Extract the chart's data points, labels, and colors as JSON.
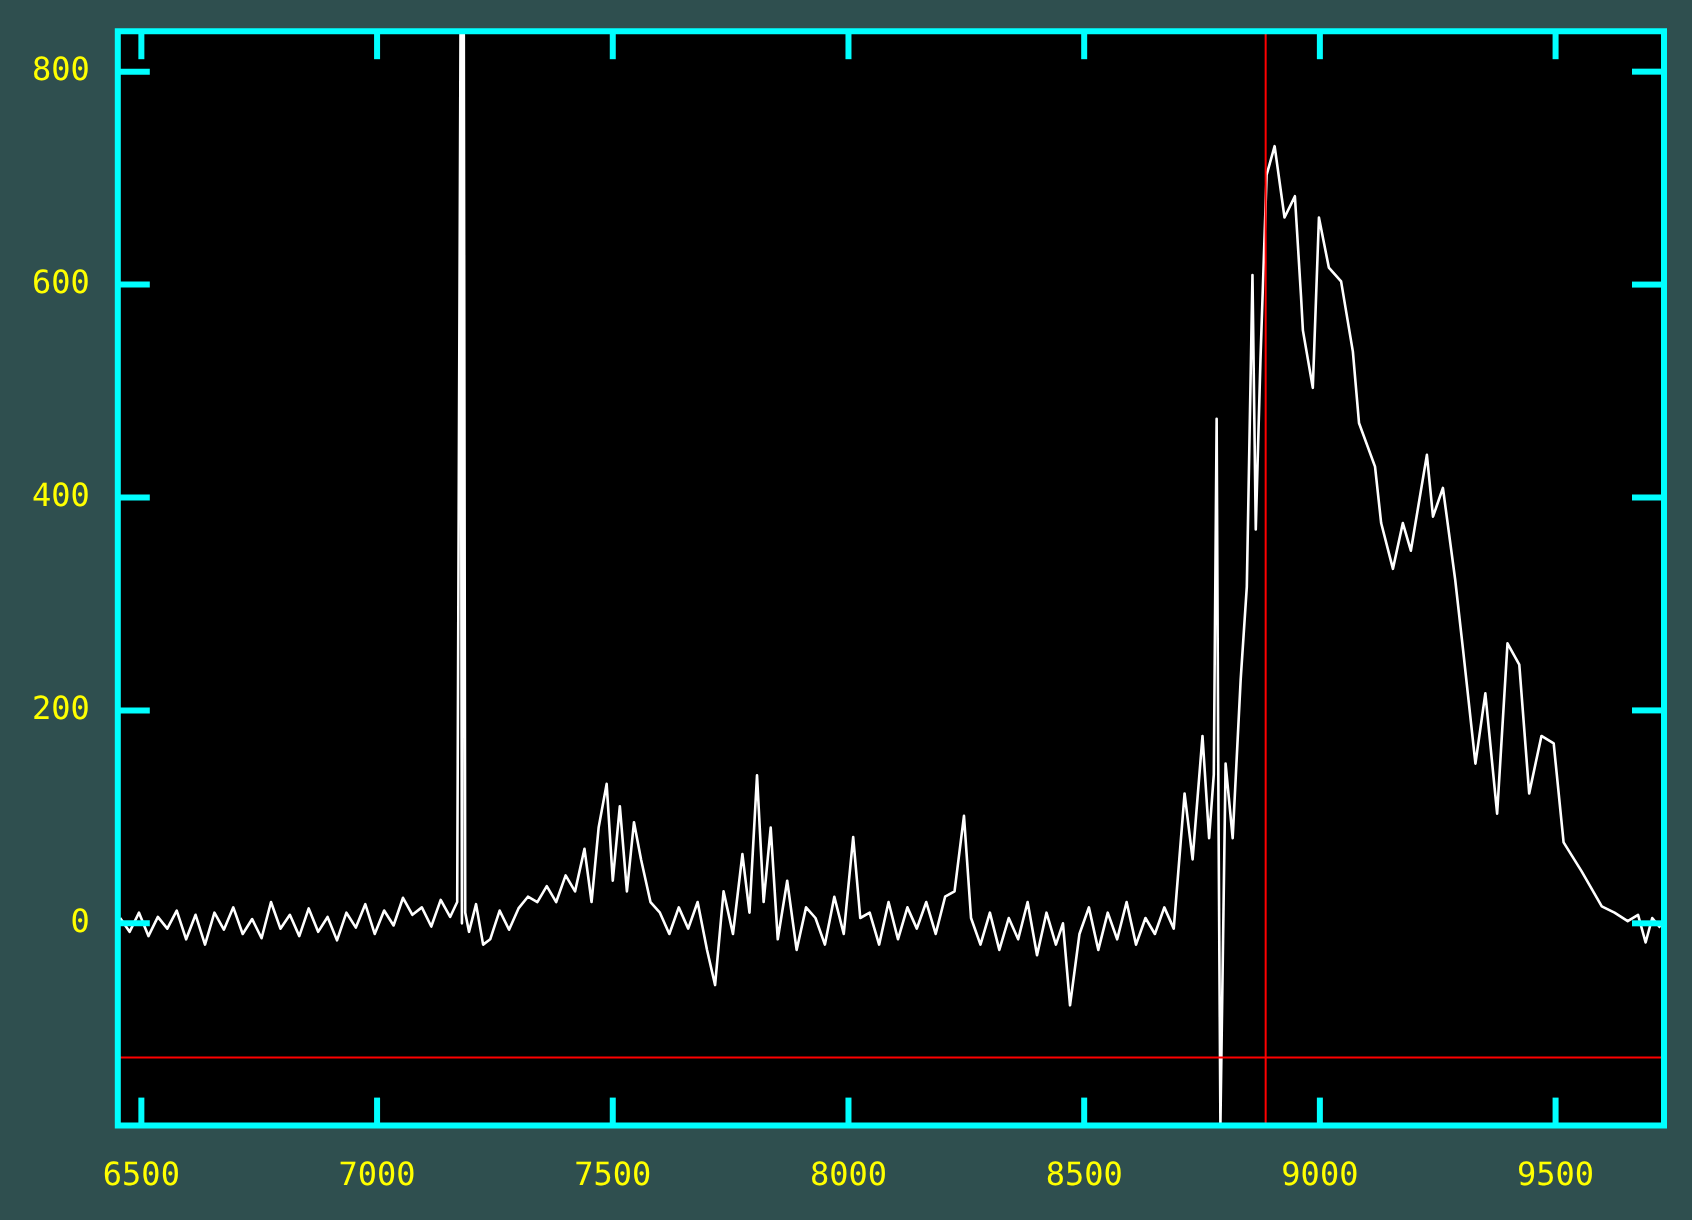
{
  "chart_data": {
    "type": "line",
    "xlim": [
      6450,
      9730
    ],
    "ylim": [
      -190,
      838
    ],
    "xticks": [
      6500,
      7000,
      7500,
      8000,
      8500,
      9000,
      9500
    ],
    "yticks": [
      0,
      200,
      400,
      600,
      800
    ],
    "ref_lines": [
      {
        "axis": "x",
        "value": 8885,
        "color": "#ff0000"
      },
      {
        "axis": "y",
        "value": -126,
        "color": "#ff0000"
      }
    ],
    "series": [
      {
        "color": "#ffffff",
        "x": [
          6455,
          6475,
          6495,
          6515,
          6535,
          6555,
          6575,
          6595,
          6615,
          6635,
          6655,
          6675,
          6695,
          6715,
          6735,
          6755,
          6775,
          6795,
          6815,
          6835,
          6855,
          6875,
          6895,
          6915,
          6935,
          6955,
          6975,
          6995,
          7015,
          7035,
          7055,
          7075,
          7095,
          7115,
          7135,
          7155,
          7170,
          7177,
          7180,
          7184,
          7187,
          7195,
          7210,
          7225,
          7240,
          7260,
          7280,
          7300,
          7320,
          7340,
          7360,
          7380,
          7400,
          7420,
          7440,
          7455,
          7470,
          7487,
          7500,
          7515,
          7530,
          7545,
          7560,
          7580,
          7600,
          7620,
          7640,
          7660,
          7680,
          7700,
          7717,
          7735,
          7755,
          7775,
          7790,
          7806,
          7820,
          7835,
          7850,
          7870,
          7890,
          7910,
          7930,
          7950,
          7970,
          7990,
          8010,
          8025,
          8045,
          8065,
          8085,
          8105,
          8125,
          8145,
          8165,
          8185,
          8205,
          8225,
          8245,
          8260,
          8280,
          8300,
          8320,
          8340,
          8360,
          8380,
          8400,
          8420,
          8440,
          8455,
          8470,
          8490,
          8510,
          8530,
          8550,
          8570,
          8590,
          8610,
          8630,
          8650,
          8670,
          8690,
          8713,
          8730,
          8751,
          8765,
          8775,
          8781,
          8785,
          8789,
          8800,
          8815,
          8832,
          8845,
          8857,
          8864,
          8874,
          8887,
          8904,
          8925,
          8947,
          8960,
          8964,
          8985,
          8998,
          9019,
          9045,
          9070,
          9083,
          9117,
          9130,
          9155,
          9176,
          9193,
          9227,
          9240,
          9261,
          9287,
          9304,
          9330,
          9351,
          9376,
          9398,
          9423,
          9444,
          9470,
          9496,
          9517,
          9555,
          9598,
          9625,
          9653,
          9675,
          9691,
          9705,
          9722
        ],
        "values": [
          5,
          -8,
          10,
          -12,
          6,
          -5,
          12,
          -15,
          8,
          -20,
          10,
          -6,
          15,
          -10,
          4,
          -14,
          20,
          -5,
          8,
          -12,
          14,
          -8,
          6,
          -16,
          10,
          -4,
          18,
          -10,
          12,
          -2,
          24,
          8,
          15,
          -3,
          22,
          6,
          20,
          835,
          0,
          835,
          10,
          -8,
          18,
          -20,
          -15,
          12,
          -6,
          14,
          25,
          20,
          35,
          20,
          45,
          30,
          70,
          20,
          90,
          131,
          40,
          110,
          30,
          95,
          60,
          20,
          10,
          -10,
          15,
          -5,
          20,
          -25,
          -58,
          30,
          -10,
          65,
          10,
          139,
          20,
          90,
          -15,
          40,
          -25,
          15,
          5,
          -20,
          25,
          -10,
          81,
          5,
          10,
          -20,
          20,
          -15,
          15,
          -5,
          20,
          -10,
          25,
          30,
          101,
          5,
          -20,
          10,
          -25,
          5,
          -15,
          20,
          -30,
          10,
          -20,
          0,
          -77,
          -10,
          15,
          -25,
          10,
          -15,
          20,
          -20,
          5,
          -10,
          15,
          -5,
          122,
          60,
          176,
          80,
          140,
          474,
          100,
          -189,
          150,
          80,
          229,
          316,
          609,
          370,
          530,
          703,
          730,
          663,
          683,
          589,
          557,
          503,
          663,
          616,
          603,
          537,
          470,
          429,
          376,
          333,
          376,
          350,
          440,
          382,
          409,
          323,
          256,
          150,
          216,
          103,
          263,
          243,
          122,
          176,
          169,
          76,
          49,
          16,
          10,
          2,
          8,
          -18,
          5,
          -4
        ]
      }
    ]
  }
}
